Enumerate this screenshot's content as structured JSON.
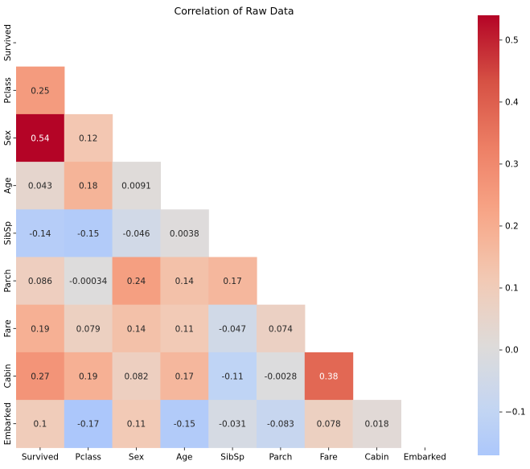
{
  "chart_data": {
    "type": "heatmap",
    "title": "Correlation of Raw Data",
    "variables": [
      "Survived",
      "Pclass",
      "Sex",
      "Age",
      "SibSp",
      "Parch",
      "Fare",
      "Cabin",
      "Embarked"
    ],
    "mask": "upper-triangle-including-diagonal",
    "cells": [
      {
        "row": "Pclass",
        "col": "Survived",
        "value": 0.25,
        "label": "0.25"
      },
      {
        "row": "Sex",
        "col": "Survived",
        "value": 0.54,
        "label": "0.54"
      },
      {
        "row": "Sex",
        "col": "Pclass",
        "value": 0.12,
        "label": "0.12"
      },
      {
        "row": "Age",
        "col": "Survived",
        "value": 0.043,
        "label": "0.043"
      },
      {
        "row": "Age",
        "col": "Pclass",
        "value": 0.18,
        "label": "0.18"
      },
      {
        "row": "Age",
        "col": "Sex",
        "value": 0.0091,
        "label": "0.0091"
      },
      {
        "row": "SibSp",
        "col": "Survived",
        "value": -0.14,
        "label": "-0.14"
      },
      {
        "row": "SibSp",
        "col": "Pclass",
        "value": -0.15,
        "label": "-0.15"
      },
      {
        "row": "SibSp",
        "col": "Sex",
        "value": -0.046,
        "label": "-0.046"
      },
      {
        "row": "SibSp",
        "col": "Age",
        "value": 0.0038,
        "label": "0.0038"
      },
      {
        "row": "Parch",
        "col": "Survived",
        "value": 0.086,
        "label": "0.086"
      },
      {
        "row": "Parch",
        "col": "Pclass",
        "value": -0.00034,
        "label": "-0.00034"
      },
      {
        "row": "Parch",
        "col": "Sex",
        "value": 0.24,
        "label": "0.24"
      },
      {
        "row": "Parch",
        "col": "Age",
        "value": 0.14,
        "label": "0.14"
      },
      {
        "row": "Parch",
        "col": "SibSp",
        "value": 0.17,
        "label": "0.17"
      },
      {
        "row": "Fare",
        "col": "Survived",
        "value": 0.19,
        "label": "0.19"
      },
      {
        "row": "Fare",
        "col": "Pclass",
        "value": 0.079,
        "label": "0.079"
      },
      {
        "row": "Fare",
        "col": "Sex",
        "value": 0.14,
        "label": "0.14"
      },
      {
        "row": "Fare",
        "col": "Age",
        "value": 0.11,
        "label": "0.11"
      },
      {
        "row": "Fare",
        "col": "SibSp",
        "value": -0.047,
        "label": "-0.047"
      },
      {
        "row": "Fare",
        "col": "Parch",
        "value": 0.074,
        "label": "0.074"
      },
      {
        "row": "Cabin",
        "col": "Survived",
        "value": 0.27,
        "label": "0.27"
      },
      {
        "row": "Cabin",
        "col": "Pclass",
        "value": 0.19,
        "label": "0.19"
      },
      {
        "row": "Cabin",
        "col": "Sex",
        "value": 0.082,
        "label": "0.082"
      },
      {
        "row": "Cabin",
        "col": "Age",
        "value": 0.17,
        "label": "0.17"
      },
      {
        "row": "Cabin",
        "col": "SibSp",
        "value": -0.11,
        "label": "-0.11"
      },
      {
        "row": "Cabin",
        "col": "Parch",
        "value": -0.0028,
        "label": "-0.0028"
      },
      {
        "row": "Cabin",
        "col": "Fare",
        "value": 0.38,
        "label": "0.38"
      },
      {
        "row": "Embarked",
        "col": "Survived",
        "value": 0.1,
        "label": "0.1"
      },
      {
        "row": "Embarked",
        "col": "Pclass",
        "value": -0.17,
        "label": "-0.17"
      },
      {
        "row": "Embarked",
        "col": "Sex",
        "value": 0.11,
        "label": "0.11"
      },
      {
        "row": "Embarked",
        "col": "Age",
        "value": -0.15,
        "label": "-0.15"
      },
      {
        "row": "Embarked",
        "col": "SibSp",
        "value": -0.031,
        "label": "-0.031"
      },
      {
        "row": "Embarked",
        "col": "Parch",
        "value": -0.083,
        "label": "-0.083"
      },
      {
        "row": "Embarked",
        "col": "Fare",
        "value": 0.078,
        "label": "0.078"
      },
      {
        "row": "Embarked",
        "col": "Cabin",
        "value": 0.018,
        "label": "0.018"
      }
    ],
    "colorbar": {
      "colormap": "coolwarm",
      "vmin": -0.17,
      "vmax": 0.54,
      "center": 0,
      "ticks": [
        {
          "value": 0.5,
          "label": "0.5"
        },
        {
          "value": 0.4,
          "label": "0.4"
        },
        {
          "value": 0.3,
          "label": "0.3"
        },
        {
          "value": 0.2,
          "label": "0.2"
        },
        {
          "value": 0.1,
          "label": "0.1"
        },
        {
          "value": 0.0,
          "label": "0.0"
        },
        {
          "value": -0.1,
          "label": "−0.1"
        }
      ]
    },
    "colors": {
      "min": "#aac7fd",
      "mid": "#dddcdc",
      "max": "#b40426",
      "text_dark": "#262626",
      "text_light": "#ffffff"
    }
  }
}
